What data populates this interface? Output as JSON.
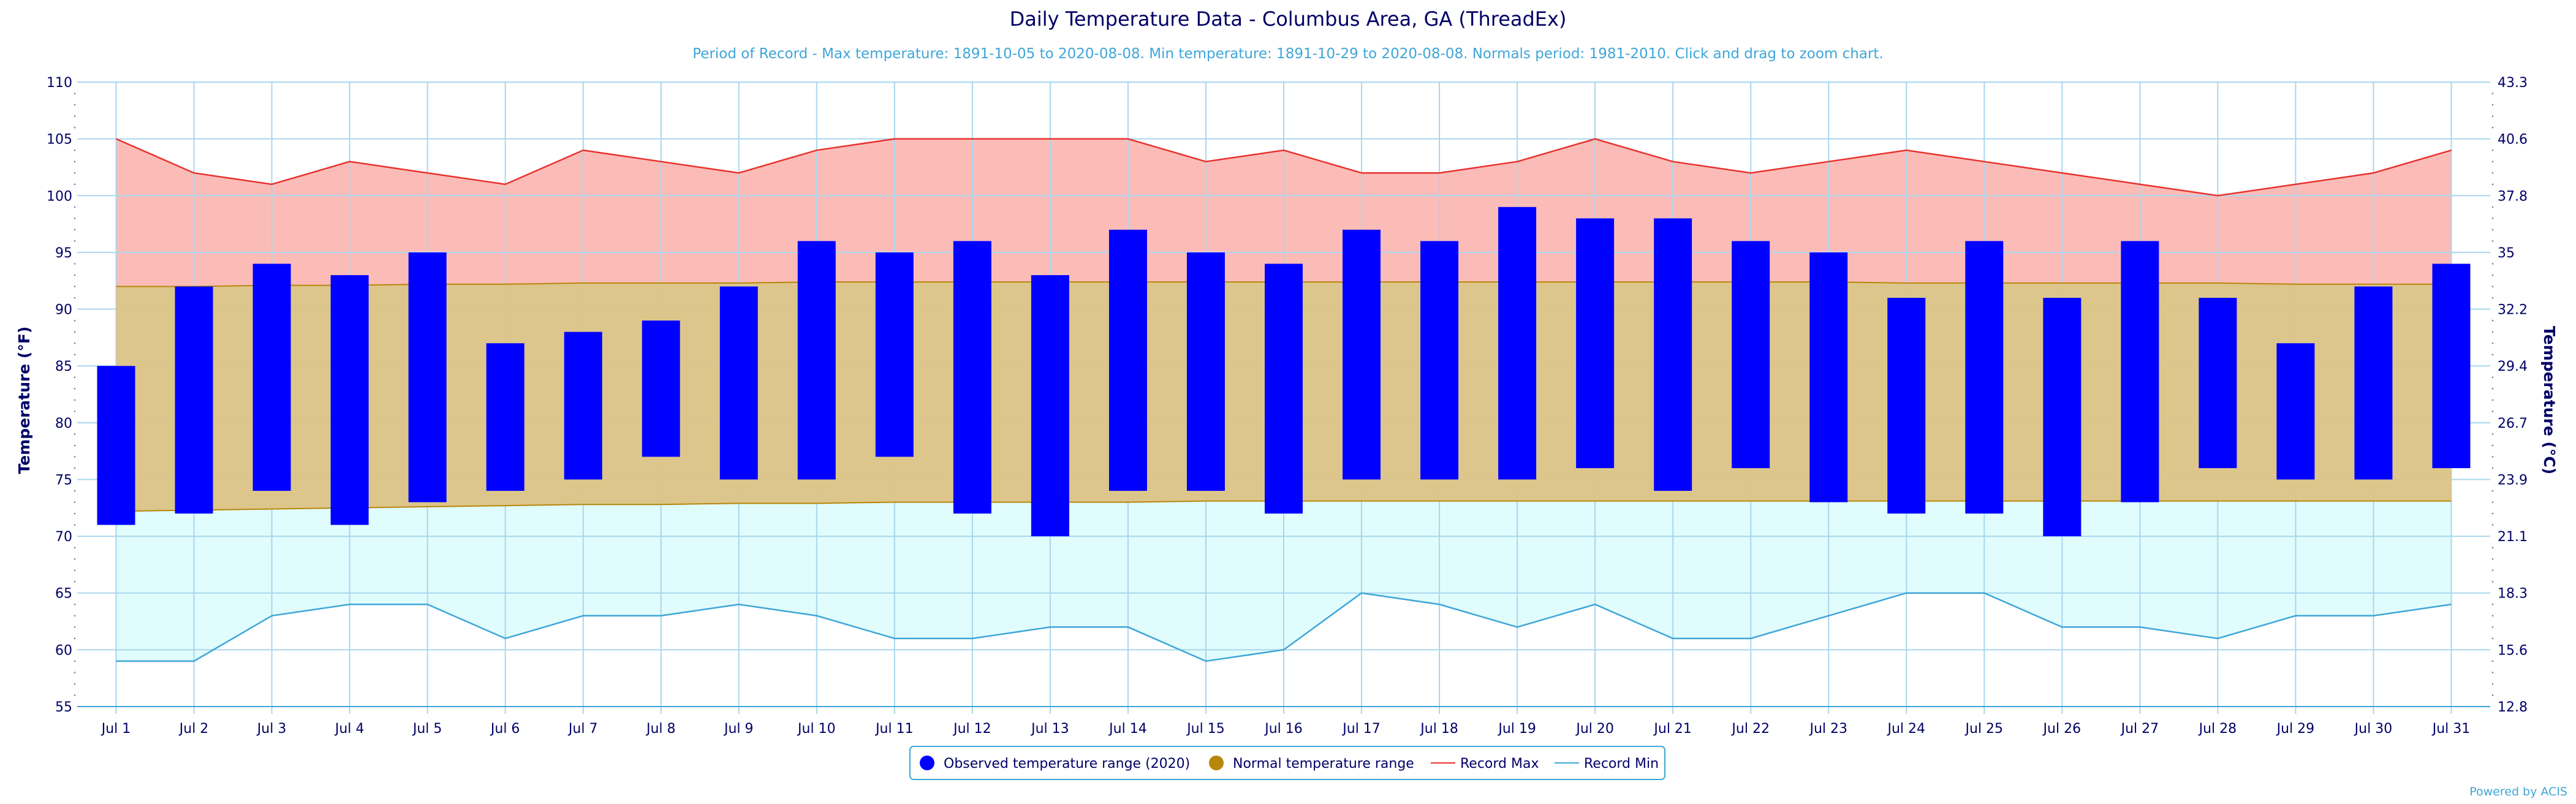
{
  "chart_data": {
    "type": "bar",
    "title": "Daily Temperature Data - Columbus Area, GA (ThreadEx)",
    "subtitle": "Period of Record - Max temperature: 1891-10-05 to 2020-08-08. Min temperature: 1891-10-29 to 2020-08-08. Normals period: 1981-2010. Click and drag to zoom chart.",
    "ylabel": "Temperature (°F)",
    "ylabel_right": "Temperature (°C)",
    "ylim": [
      55,
      110
    ],
    "y_ticks": [
      55,
      60,
      65,
      70,
      75,
      80,
      85,
      90,
      95,
      100,
      105,
      110
    ],
    "y_ticks_right": [
      "12.8",
      "15.6",
      "18.3",
      "21.1",
      "23.9",
      "26.7",
      "29.4",
      "32.2",
      "35",
      "37.8",
      "40.6",
      "43.3"
    ],
    "grid": true,
    "legend_position": "bottom-center",
    "categories": [
      "Jul 1",
      "Jul 2",
      "Jul 3",
      "Jul 4",
      "Jul 5",
      "Jul 6",
      "Jul 7",
      "Jul 8",
      "Jul 9",
      "Jul 10",
      "Jul 11",
      "Jul 12",
      "Jul 13",
      "Jul 14",
      "Jul 15",
      "Jul 16",
      "Jul 17",
      "Jul 18",
      "Jul 19",
      "Jul 20",
      "Jul 21",
      "Jul 22",
      "Jul 23",
      "Jul 24",
      "Jul 25",
      "Jul 26",
      "Jul 27",
      "Jul 28",
      "Jul 29",
      "Jul 30",
      "Jul 31"
    ],
    "series": [
      {
        "name": "Observed temperature range (2020)",
        "type": "columnrange",
        "color": "#0000ff",
        "low": [
          71,
          72,
          74,
          71,
          73,
          74,
          75,
          77,
          75,
          75,
          77,
          72,
          70,
          74,
          74,
          72,
          75,
          75,
          75,
          76,
          74,
          76,
          73,
          72,
          72,
          70,
          73,
          76,
          75,
          75,
          76
        ],
        "high": [
          85,
          92,
          94,
          93,
          95,
          87,
          88,
          89,
          92,
          96,
          95,
          96,
          93,
          97,
          95,
          94,
          97,
          96,
          99,
          98,
          98,
          96,
          95,
          91,
          96,
          91,
          96,
          91,
          87,
          92,
          94
        ]
      },
      {
        "name": "Normal temperature range",
        "type": "arearange",
        "color": "#b8860b",
        "low": [
          72.2,
          72.3,
          72.4,
          72.5,
          72.6,
          72.7,
          72.8,
          72.8,
          72.9,
          72.9,
          73,
          73,
          73,
          73,
          73.1,
          73.1,
          73.1,
          73.1,
          73.1,
          73.1,
          73.1,
          73.1,
          73.1,
          73.1,
          73.1,
          73.1,
          73.1,
          73.1,
          73.1,
          73.1,
          73.1
        ],
        "high": [
          92,
          92,
          92.1,
          92.1,
          92.2,
          92.2,
          92.3,
          92.3,
          92.3,
          92.4,
          92.4,
          92.4,
          92.4,
          92.4,
          92.4,
          92.4,
          92.4,
          92.4,
          92.4,
          92.4,
          92.4,
          92.4,
          92.4,
          92.3,
          92.3,
          92.3,
          92.3,
          92.3,
          92.2,
          92.2,
          92.2
        ]
      },
      {
        "name": "Record Max",
        "type": "line",
        "color": "#e8322e",
        "values": [
          105,
          102,
          101,
          103,
          102,
          101,
          104,
          103,
          102,
          104,
          105,
          105,
          105,
          105,
          103,
          104,
          102,
          102,
          103,
          105,
          103,
          102,
          103,
          104,
          103,
          102,
          101,
          100,
          101,
          102,
          104
        ]
      },
      {
        "name": "Record Min",
        "type": "line",
        "color": "#3ea6d8",
        "values": [
          59,
          59,
          63,
          64,
          64,
          61,
          63,
          63,
          64,
          63,
          61,
          61,
          62,
          62,
          59,
          60,
          65,
          64,
          62,
          64,
          61,
          61,
          63,
          65,
          65,
          62,
          62,
          61,
          63,
          63,
          64
        ]
      }
    ],
    "band_colors": {
      "record_max_fill": "#fbbcb8",
      "record_min_fill": "#e0fcfc",
      "normal_fill": "#dbc385"
    }
  },
  "credits": "Powered by ACIS"
}
